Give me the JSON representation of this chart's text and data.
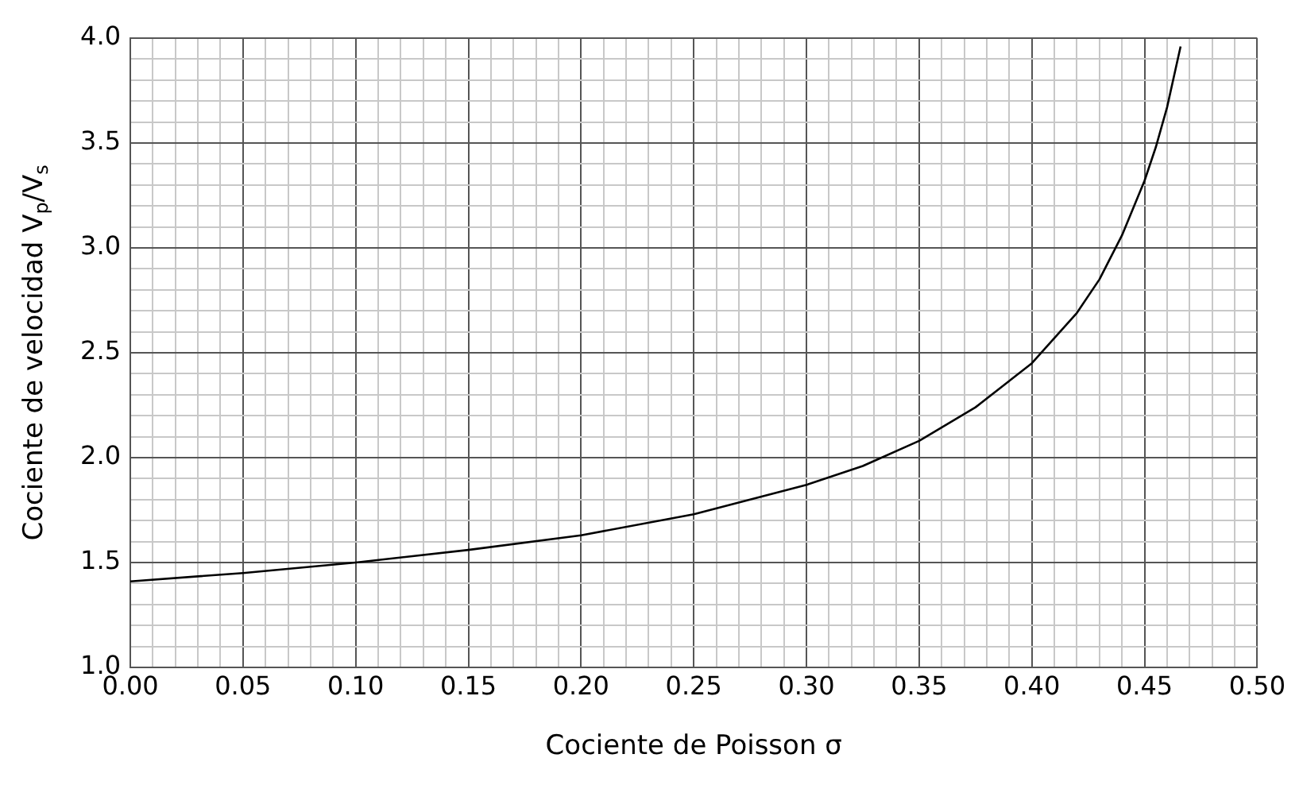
{
  "chart_data": {
    "type": "line",
    "xlabel": "Cociente de Poisson σ",
    "ylabel": "Cociente de velocidad V$_{p}$/V$_{s}$",
    "x": [
      0,
      0.05,
      0.1,
      0.15,
      0.2,
      0.25,
      0.3,
      0.325,
      0.35,
      0.375,
      0.4,
      0.42,
      0.43,
      0.44,
      0.45,
      0.455,
      0.46,
      0.466
    ],
    "series": [
      {
        "color": "#000000",
        "values": [
          1.41,
          1.45,
          1.5,
          1.56,
          1.63,
          1.73,
          1.87,
          1.96,
          2.08,
          2.24,
          2.45,
          2.69,
          2.85,
          3.06,
          3.32,
          3.48,
          3.67,
          3.96
        ]
      }
    ],
    "xlim": [
      0,
      0.5
    ],
    "ylim": [
      1,
      4
    ],
    "xticks": [
      {
        "value": 0,
        "label": "0.00"
      },
      {
        "value": 0.01,
        "label": null
      },
      {
        "value": 0.02,
        "label": null
      },
      {
        "value": 0.03,
        "label": null
      },
      {
        "value": 0.04,
        "label": null
      },
      {
        "value": 0.05,
        "label": "0.05"
      },
      {
        "value": 0.06,
        "label": null
      },
      {
        "value": 0.07,
        "label": null
      },
      {
        "value": 0.08,
        "label": null
      },
      {
        "value": 0.09,
        "label": null
      },
      {
        "value": 0.1,
        "label": "0.10"
      },
      {
        "value": 0.11,
        "label": null
      },
      {
        "value": 0.12,
        "label": null
      },
      {
        "value": 0.13,
        "label": null
      },
      {
        "value": 0.14,
        "label": null
      },
      {
        "value": 0.15,
        "label": "0.15"
      },
      {
        "value": 0.16,
        "label": null
      },
      {
        "value": 0.17,
        "label": null
      },
      {
        "value": 0.18,
        "label": null
      },
      {
        "value": 0.19,
        "label": null
      },
      {
        "value": 0.2,
        "label": "0.20"
      },
      {
        "value": 0.21,
        "label": null
      },
      {
        "value": 0.22,
        "label": null
      },
      {
        "value": 0.23,
        "label": null
      },
      {
        "value": 0.24,
        "label": null
      },
      {
        "value": 0.25,
        "label": "0.25"
      },
      {
        "value": 0.26,
        "label": null
      },
      {
        "value": 0.27,
        "label": null
      },
      {
        "value": 0.28,
        "label": null
      },
      {
        "value": 0.29,
        "label": null
      },
      {
        "value": 0.3,
        "label": "0.30"
      },
      {
        "value": 0.31,
        "label": null
      },
      {
        "value": 0.32,
        "label": null
      },
      {
        "value": 0.33,
        "label": null
      },
      {
        "value": 0.34,
        "label": null
      },
      {
        "value": 0.35,
        "label": "0.35"
      },
      {
        "value": 0.36,
        "label": null
      },
      {
        "value": 0.37,
        "label": null
      },
      {
        "value": 0.38,
        "label": null
      },
      {
        "value": 0.39,
        "label": null
      },
      {
        "value": 0.4,
        "label": "0.40"
      },
      {
        "value": 0.41,
        "label": null
      },
      {
        "value": 0.42,
        "label": null
      },
      {
        "value": 0.43,
        "label": null
      },
      {
        "value": 0.44,
        "label": null
      },
      {
        "value": 0.45,
        "label": "0.45"
      },
      {
        "value": 0.46,
        "label": null
      },
      {
        "value": 0.47,
        "label": null
      },
      {
        "value": 0.48,
        "label": null
      },
      {
        "value": 0.49,
        "label": null
      },
      {
        "value": 0.5,
        "label": "0.50"
      }
    ],
    "yticks": [
      {
        "value": 1,
        "label": "1.0"
      },
      {
        "value": 1.1,
        "label": null
      },
      {
        "value": 1.2,
        "label": null
      },
      {
        "value": 1.3,
        "label": null
      },
      {
        "value": 1.4,
        "label": null
      },
      {
        "value": 1.5,
        "label": "1.5"
      },
      {
        "value": 1.6,
        "label": null
      },
      {
        "value": 1.7,
        "label": null
      },
      {
        "value": 1.8,
        "label": null
      },
      {
        "value": 1.9,
        "label": null
      },
      {
        "value": 2,
        "label": "2.0"
      },
      {
        "value": 2.1,
        "label": null
      },
      {
        "value": 2.2,
        "label": null
      },
      {
        "value": 2.3,
        "label": null
      },
      {
        "value": 2.4,
        "label": null
      },
      {
        "value": 2.5,
        "label": "2.5"
      },
      {
        "value": 2.6,
        "label": null
      },
      {
        "value": 2.7,
        "label": null
      },
      {
        "value": 2.8,
        "label": null
      },
      {
        "value": 2.9,
        "label": null
      },
      {
        "value": 3,
        "label": "3.0"
      },
      {
        "value": 3.1,
        "label": null
      },
      {
        "value": 3.2,
        "label": null
      },
      {
        "value": 3.3,
        "label": null
      },
      {
        "value": 3.4,
        "label": null
      },
      {
        "value": 3.5,
        "label": "3.5"
      },
      {
        "value": 3.6,
        "label": null
      },
      {
        "value": 3.7,
        "label": null
      },
      {
        "value": 3.8,
        "label": null
      },
      {
        "value": 3.9,
        "label": null
      },
      {
        "value": 4,
        "label": "4.0"
      }
    ],
    "grid": true,
    "marker": "none",
    "line_style": "solid",
    "legend": false
  }
}
